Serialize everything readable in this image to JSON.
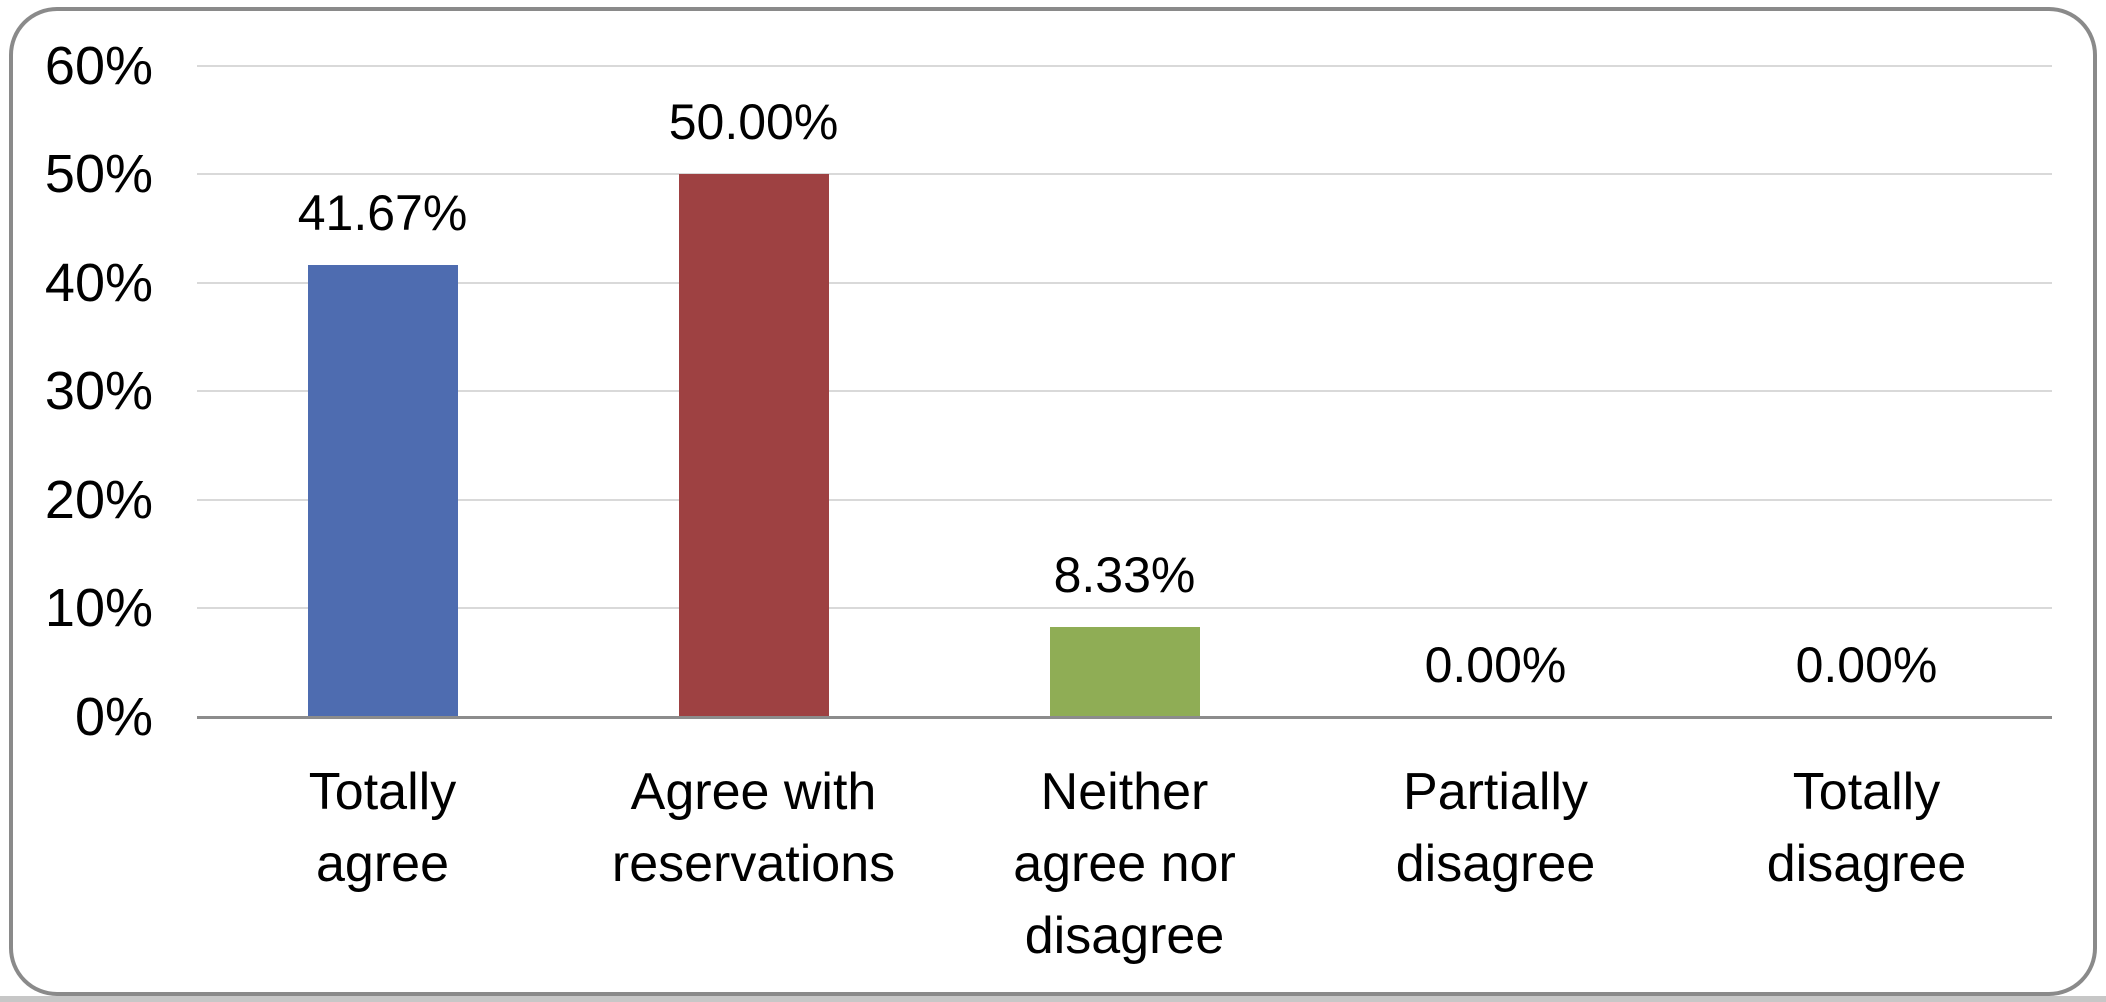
{
  "chart_data": {
    "type": "bar",
    "title": "",
    "xlabel": "",
    "ylabel": "",
    "categories": [
      "Totally\nagree",
      "Agree with\nreservations",
      "Neither\nagree nor\ndisagree",
      "Partially\ndisagree",
      "Totally\ndisagree"
    ],
    "values": [
      41.67,
      50.0,
      8.33,
      0.0,
      0.0
    ],
    "data_labels": [
      "41.67%",
      "50.00%",
      "8.33%",
      "0.00%",
      "0.00%"
    ],
    "bar_colors": [
      "#4e6cb0",
      "#9e4142",
      "#8fad55",
      null,
      null
    ],
    "yticks": [
      "60%",
      "50%",
      "40%",
      "30%",
      "20%",
      "10%",
      "0%"
    ],
    "ytick_values": [
      60,
      50,
      40,
      30,
      20,
      10,
      0
    ],
    "ylim": [
      0,
      60
    ],
    "grid": true,
    "legend": "none"
  },
  "frame": {
    "border_color": "#8a8a8a",
    "background": "#ffffff"
  },
  "colors": {
    "gridline": "#d9d9d9",
    "axis_line": "#8c8c8c",
    "text": "#000000",
    "bottom_strip": "#c7c7c7"
  }
}
